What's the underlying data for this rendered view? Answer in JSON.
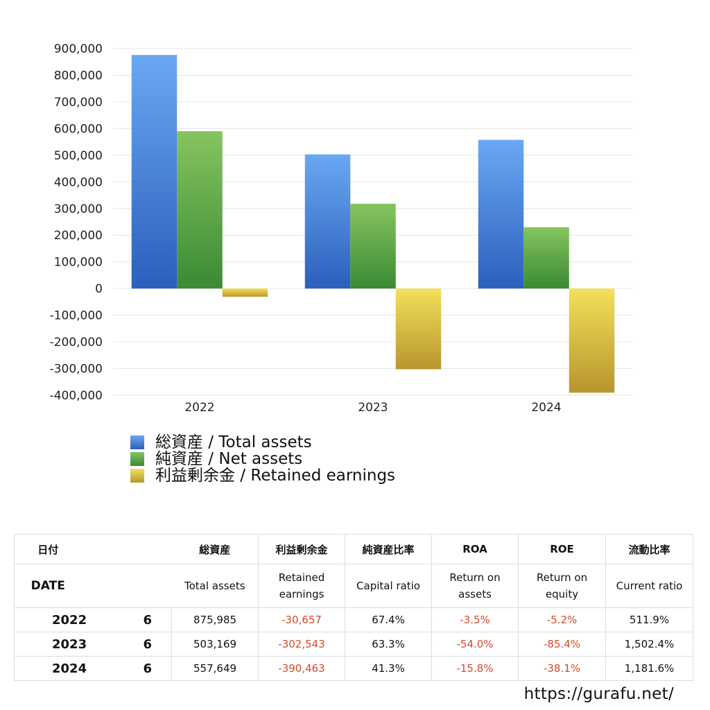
{
  "chart_data": {
    "type": "bar",
    "categories": [
      "2022",
      "2023",
      "2024"
    ],
    "series": [
      {
        "name": "総資産 / Total assets",
        "values": [
          875985,
          503169,
          557649
        ],
        "color_top": "#6aa8f2",
        "color_bottom": "#2b5fbd"
      },
      {
        "name": "純資産 / Net assets",
        "values": [
          590000,
          318000,
          230000
        ],
        "color_top": "#86c460",
        "color_bottom": "#3a8a34"
      },
      {
        "name": "利益剰余金 / Retained earnings",
        "values": [
          -30657,
          -302543,
          -390463
        ],
        "color_top": "#f3e05a",
        "color_bottom": "#b8952e"
      }
    ],
    "ylim": [
      -400000,
      900000
    ],
    "yticks": [
      "900,000",
      "800,000",
      "700,000",
      "600,000",
      "500,000",
      "400,000",
      "300,000",
      "200,000",
      "100,000",
      "0",
      "-100,000",
      "-200,000",
      "-300,000",
      "-400,000"
    ],
    "ytick_values": [
      900000,
      800000,
      700000,
      600000,
      500000,
      400000,
      300000,
      200000,
      100000,
      0,
      -100000,
      -200000,
      -300000,
      -400000
    ],
    "grid": true,
    "legend_position": "bottom-left"
  },
  "table": {
    "header_jp": [
      "日付",
      "総資産",
      "利益剰余金",
      "純資産比率",
      "ROA",
      "ROE",
      "流動比率"
    ],
    "header_en": [
      "DATE",
      "Total assets",
      "Retained earnings",
      "Capital ratio",
      "Return on assets",
      "Return on equity",
      "Current ratio"
    ],
    "rows": [
      {
        "year": "2022",
        "month": "6",
        "total_assets": "875,985",
        "retained": "-30,657",
        "capital_ratio": "67.4%",
        "roa": "-3.5%",
        "roe": "-5.2%",
        "current_ratio": "511.9%"
      },
      {
        "year": "2023",
        "month": "6",
        "total_assets": "503,169",
        "retained": "-302,543",
        "capital_ratio": "63.3%",
        "roa": "-54.0%",
        "roe": "-85.4%",
        "current_ratio": "1,502.4%"
      },
      {
        "year": "2024",
        "month": "6",
        "total_assets": "557,649",
        "retained": "-390,463",
        "capital_ratio": "41.3%",
        "roa": "-15.8%",
        "roe": "-38.1%",
        "current_ratio": "1,181.6%"
      }
    ],
    "negative_color": "#d9472b"
  },
  "footer": {
    "url": "https://gurafu.net/"
  }
}
